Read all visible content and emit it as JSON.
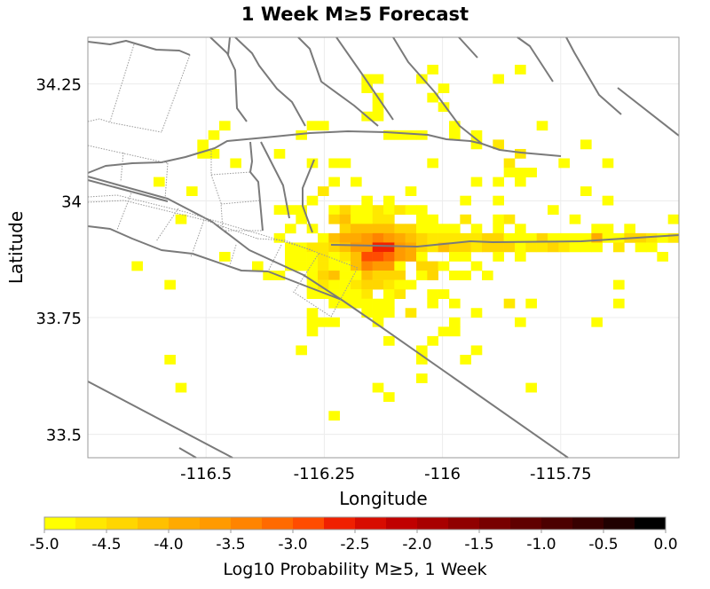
{
  "chart_data": {
    "type": "heatmap",
    "title": "1 Week M≥5 Forecast",
    "xlabel": "Longitude",
    "ylabel": "Latitude",
    "xlim": [
      -116.75,
      -115.5
    ],
    "ylim": [
      33.45,
      34.35
    ],
    "xticks": [
      "-116.5",
      "-116.25",
      "-116",
      "-115.75"
    ],
    "xtick_values": [
      -116.5,
      -116.25,
      -116.0,
      -115.75
    ],
    "yticks": [
      "34.25",
      "34",
      "33.75",
      "33.5"
    ],
    "ytick_values": [
      34.25,
      34.0,
      33.75,
      33.5
    ],
    "grid": {
      "lon_min": -116.75,
      "lat_max": 34.35,
      "cols": 54,
      "rows": 45
    },
    "level_scale": {
      "log10_min": -5.0,
      "step": 0.25,
      "note": "cell value = log10_min + step*(level+0.5)"
    },
    "cells": [
      [
        31,
        3,
        0
      ],
      [
        39,
        3,
        0
      ],
      [
        25,
        4,
        0
      ],
      [
        26,
        4,
        0
      ],
      [
        30,
        4,
        0
      ],
      [
        37,
        4,
        0
      ],
      [
        25,
        5,
        0
      ],
      [
        32,
        5,
        0
      ],
      [
        26,
        6,
        0
      ],
      [
        31,
        6,
        0
      ],
      [
        26,
        7,
        0
      ],
      [
        32,
        7,
        0
      ],
      [
        25,
        8,
        0
      ],
      [
        26,
        8,
        0
      ],
      [
        12,
        9,
        0
      ],
      [
        20,
        9,
        0
      ],
      [
        21,
        9,
        0
      ],
      [
        33,
        9,
        0
      ],
      [
        41,
        9,
        0
      ],
      [
        11,
        10,
        0
      ],
      [
        19,
        10,
        0
      ],
      [
        27,
        10,
        0
      ],
      [
        28,
        10,
        0
      ],
      [
        29,
        10,
        0
      ],
      [
        30,
        10,
        0
      ],
      [
        33,
        10,
        0
      ],
      [
        35,
        10,
        0
      ],
      [
        10,
        11,
        0
      ],
      [
        35,
        11,
        0
      ],
      [
        37,
        11,
        1
      ],
      [
        45,
        11,
        0
      ],
      [
        10,
        12,
        0
      ],
      [
        11,
        12,
        0
      ],
      [
        17,
        12,
        0
      ],
      [
        39,
        12,
        1
      ],
      [
        13,
        13,
        0
      ],
      [
        20,
        13,
        0
      ],
      [
        22,
        13,
        0
      ],
      [
        23,
        13,
        0
      ],
      [
        31,
        13,
        0
      ],
      [
        38,
        13,
        1
      ],
      [
        43,
        13,
        0
      ],
      [
        47,
        13,
        0
      ],
      [
        38,
        14,
        0
      ],
      [
        39,
        14,
        0
      ],
      [
        40,
        14,
        0
      ],
      [
        6,
        15,
        0
      ],
      [
        22,
        15,
        0
      ],
      [
        24,
        15,
        0
      ],
      [
        35,
        15,
        0
      ],
      [
        37,
        15,
        0
      ],
      [
        39,
        15,
        0
      ],
      [
        9,
        16,
        0
      ],
      [
        21,
        16,
        1
      ],
      [
        29,
        16,
        0
      ],
      [
        45,
        16,
        0
      ],
      [
        20,
        17,
        0
      ],
      [
        25,
        17,
        0
      ],
      [
        27,
        17,
        0
      ],
      [
        34,
        17,
        0
      ],
      [
        37,
        17,
        0
      ],
      [
        47,
        17,
        0
      ],
      [
        17,
        18,
        0
      ],
      [
        18,
        18,
        0
      ],
      [
        19,
        18,
        0
      ],
      [
        22,
        18,
        0
      ],
      [
        23,
        18,
        2
      ],
      [
        24,
        18,
        0
      ],
      [
        25,
        18,
        0
      ],
      [
        26,
        18,
        1
      ],
      [
        27,
        18,
        0
      ],
      [
        28,
        18,
        1
      ],
      [
        29,
        18,
        0
      ],
      [
        30,
        18,
        0
      ],
      [
        42,
        18,
        0
      ],
      [
        8,
        19,
        0
      ],
      [
        19,
        19,
        0
      ],
      [
        22,
        19,
        2
      ],
      [
        23,
        19,
        3
      ],
      [
        24,
        19,
        0
      ],
      [
        25,
        19,
        0
      ],
      [
        26,
        19,
        1
      ],
      [
        27,
        19,
        1
      ],
      [
        30,
        19,
        0
      ],
      [
        31,
        19,
        0
      ],
      [
        34,
        19,
        1
      ],
      [
        37,
        19,
        0
      ],
      [
        38,
        19,
        1
      ],
      [
        44,
        19,
        0
      ],
      [
        53,
        19,
        0
      ],
      [
        18,
        20,
        0
      ],
      [
        20,
        20,
        0
      ],
      [
        23,
        20,
        2
      ],
      [
        24,
        20,
        3
      ],
      [
        25,
        20,
        3
      ],
      [
        26,
        20,
        3
      ],
      [
        27,
        20,
        3
      ],
      [
        28,
        20,
        2
      ],
      [
        29,
        20,
        2
      ],
      [
        30,
        20,
        0
      ],
      [
        31,
        20,
        0
      ],
      [
        32,
        20,
        0
      ],
      [
        33,
        20,
        0
      ],
      [
        35,
        20,
        0
      ],
      [
        37,
        20,
        0
      ],
      [
        39,
        20,
        0
      ],
      [
        46,
        20,
        0
      ],
      [
        47,
        20,
        0
      ],
      [
        49,
        20,
        0
      ],
      [
        17,
        21,
        0
      ],
      [
        21,
        21,
        0
      ],
      [
        22,
        21,
        3
      ],
      [
        23,
        21,
        4
      ],
      [
        24,
        21,
        4
      ],
      [
        25,
        21,
        5
      ],
      [
        26,
        21,
        6
      ],
      [
        27,
        21,
        5
      ],
      [
        28,
        21,
        4
      ],
      [
        29,
        21,
        3
      ],
      [
        30,
        21,
        2
      ],
      [
        31,
        21,
        1
      ],
      [
        32,
        21,
        1
      ],
      [
        33,
        21,
        1
      ],
      [
        34,
        21,
        1
      ],
      [
        35,
        21,
        1
      ],
      [
        36,
        21,
        2
      ],
      [
        37,
        21,
        2
      ],
      [
        38,
        21,
        0
      ],
      [
        39,
        21,
        0
      ],
      [
        40,
        21,
        0
      ],
      [
        41,
        21,
        2
      ],
      [
        42,
        21,
        0
      ],
      [
        43,
        21,
        0
      ],
      [
        44,
        21,
        0
      ],
      [
        45,
        21,
        0
      ],
      [
        46,
        21,
        4
      ],
      [
        47,
        21,
        0
      ],
      [
        48,
        21,
        0
      ],
      [
        49,
        21,
        2
      ],
      [
        50,
        21,
        2
      ],
      [
        51,
        21,
        1
      ],
      [
        52,
        21,
        0
      ],
      [
        53,
        21,
        1
      ],
      [
        18,
        22,
        0
      ],
      [
        19,
        22,
        0
      ],
      [
        20,
        22,
        1
      ],
      [
        21,
        22,
        1
      ],
      [
        22,
        22,
        2
      ],
      [
        23,
        22,
        3
      ],
      [
        24,
        22,
        5
      ],
      [
        25,
        22,
        5
      ],
      [
        26,
        22,
        9
      ],
      [
        27,
        22,
        9
      ],
      [
        28,
        22,
        5
      ],
      [
        29,
        22,
        4
      ],
      [
        30,
        22,
        2
      ],
      [
        31,
        22,
        1
      ],
      [
        32,
        22,
        3
      ],
      [
        33,
        22,
        2
      ],
      [
        34,
        22,
        2
      ],
      [
        35,
        22,
        1
      ],
      [
        36,
        22,
        2
      ],
      [
        37,
        22,
        2
      ],
      [
        38,
        22,
        2
      ],
      [
        39,
        22,
        0
      ],
      [
        40,
        22,
        1
      ],
      [
        41,
        22,
        1
      ],
      [
        42,
        22,
        2
      ],
      [
        43,
        22,
        1
      ],
      [
        44,
        22,
        0
      ],
      [
        45,
        22,
        0
      ],
      [
        46,
        22,
        0
      ],
      [
        48,
        22,
        1
      ],
      [
        50,
        22,
        0
      ],
      [
        51,
        22,
        0
      ],
      [
        12,
        23,
        0
      ],
      [
        18,
        23,
        0
      ],
      [
        19,
        23,
        0
      ],
      [
        20,
        23,
        0
      ],
      [
        21,
        23,
        1
      ],
      [
        22,
        23,
        0
      ],
      [
        23,
        23,
        1
      ],
      [
        24,
        23,
        3
      ],
      [
        25,
        23,
        8
      ],
      [
        26,
        23,
        8
      ],
      [
        27,
        23,
        7
      ],
      [
        28,
        23,
        5
      ],
      [
        29,
        23,
        4
      ],
      [
        30,
        23,
        0
      ],
      [
        33,
        23,
        0
      ],
      [
        34,
        23,
        0
      ],
      [
        37,
        23,
        0
      ],
      [
        39,
        23,
        0
      ],
      [
        52,
        23,
        0
      ],
      [
        4,
        24,
        0
      ],
      [
        15,
        24,
        0
      ],
      [
        18,
        24,
        0
      ],
      [
        19,
        24,
        0
      ],
      [
        20,
        24,
        0
      ],
      [
        21,
        24,
        1
      ],
      [
        22,
        24,
        0
      ],
      [
        23,
        24,
        0
      ],
      [
        24,
        24,
        3
      ],
      [
        25,
        24,
        6
      ],
      [
        26,
        24,
        5
      ],
      [
        27,
        24,
        5
      ],
      [
        28,
        24,
        0
      ],
      [
        30,
        24,
        2
      ],
      [
        31,
        24,
        2
      ],
      [
        32,
        24,
        0
      ],
      [
        35,
        24,
        0
      ],
      [
        16,
        25,
        0
      ],
      [
        17,
        25,
        0
      ],
      [
        20,
        25,
        0
      ],
      [
        21,
        25,
        2
      ],
      [
        22,
        25,
        3
      ],
      [
        23,
        25,
        0
      ],
      [
        24,
        25,
        0
      ],
      [
        25,
        25,
        3
      ],
      [
        26,
        25,
        2
      ],
      [
        27,
        25,
        2
      ],
      [
        28,
        25,
        2
      ],
      [
        30,
        25,
        0
      ],
      [
        31,
        25,
        2
      ],
      [
        33,
        25,
        0
      ],
      [
        34,
        25,
        0
      ],
      [
        36,
        25,
        0
      ],
      [
        7,
        26,
        0
      ],
      [
        20,
        26,
        0
      ],
      [
        21,
        26,
        1
      ],
      [
        22,
        26,
        0
      ],
      [
        23,
        26,
        0
      ],
      [
        24,
        26,
        1
      ],
      [
        25,
        26,
        2
      ],
      [
        26,
        26,
        2
      ],
      [
        27,
        26,
        1
      ],
      [
        28,
        26,
        0
      ],
      [
        29,
        26,
        0
      ],
      [
        48,
        26,
        0
      ],
      [
        20,
        27,
        0
      ],
      [
        21,
        27,
        0
      ],
      [
        22,
        27,
        0
      ],
      [
        23,
        27,
        0
      ],
      [
        24,
        27,
        0
      ],
      [
        25,
        27,
        1
      ],
      [
        27,
        27,
        0
      ],
      [
        28,
        27,
        1
      ],
      [
        31,
        27,
        0
      ],
      [
        32,
        27,
        0
      ],
      [
        22,
        28,
        0
      ],
      [
        23,
        28,
        0
      ],
      [
        24,
        28,
        0
      ],
      [
        25,
        28,
        0
      ],
      [
        26,
        28,
        0
      ],
      [
        27,
        28,
        0
      ],
      [
        31,
        28,
        0
      ],
      [
        33,
        28,
        0
      ],
      [
        38,
        28,
        1
      ],
      [
        40,
        28,
        0
      ],
      [
        48,
        28,
        0
      ],
      [
        20,
        29,
        0
      ],
      [
        25,
        29,
        0
      ],
      [
        26,
        29,
        0
      ],
      [
        27,
        29,
        0
      ],
      [
        29,
        29,
        1
      ],
      [
        35,
        29,
        0
      ],
      [
        20,
        30,
        0
      ],
      [
        21,
        30,
        0
      ],
      [
        22,
        30,
        0
      ],
      [
        26,
        30,
        0
      ],
      [
        33,
        30,
        0
      ],
      [
        39,
        30,
        0
      ],
      [
        46,
        30,
        0
      ],
      [
        20,
        31,
        0
      ],
      [
        32,
        31,
        0
      ],
      [
        33,
        31,
        0
      ],
      [
        27,
        32,
        0
      ],
      [
        31,
        32,
        0
      ],
      [
        19,
        33,
        0
      ],
      [
        30,
        33,
        0
      ],
      [
        35,
        33,
        0
      ],
      [
        7,
        34,
        0
      ],
      [
        30,
        34,
        0
      ],
      [
        34,
        34,
        0
      ],
      [
        30,
        36,
        0
      ],
      [
        8,
        37,
        0
      ],
      [
        26,
        37,
        0
      ],
      [
        40,
        37,
        0
      ],
      [
        27,
        38,
        0
      ],
      [
        22,
        40,
        0
      ]
    ],
    "colorbar": {
      "label": "Log10 Probability M≥5, 1 Week",
      "range": [
        -5.0,
        0.0
      ],
      "ticks": [
        "-5.0",
        "-4.5",
        "-4.0",
        "-3.5",
        "-3.0",
        "-2.5",
        "-2.0",
        "-1.5",
        "-1.0",
        "-0.5",
        "0.0"
      ],
      "colors": [
        "#ffff00",
        "#ffe800",
        "#ffd600",
        "#ffc000",
        "#ffaa00",
        "#ff9a00",
        "#ff8400",
        "#ff6a00",
        "#ff4c00",
        "#f02000",
        "#d80c00",
        "#c00000",
        "#a80000",
        "#900000",
        "#780000",
        "#600000",
        "#4c0000",
        "#380000",
        "#200000",
        "#000000"
      ]
    }
  }
}
